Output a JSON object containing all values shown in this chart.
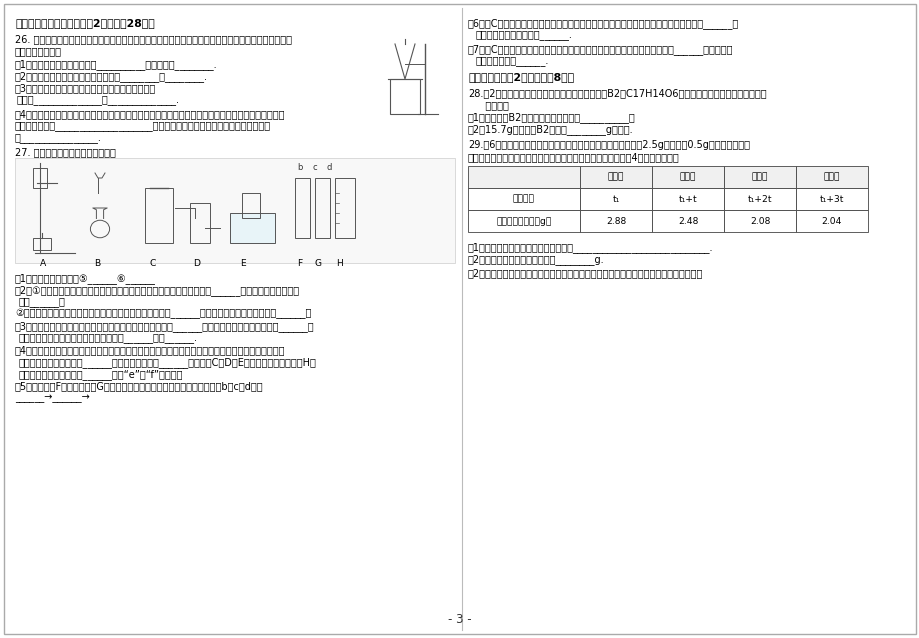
{
  "page_num": "- 3 -",
  "bg_color": "#ffffff",
  "text_color": "#000000",
  "section3_title": "三、实验与探究（本题包括2小题，共28分）",
  "q26_title": "26. 小军同学将浑浊的河水样品倒入烧杯中，先加入明矾粉末搂拌溶解，静置一会后，用右图所示的装置",
  "q26_line2": "进行过滤，请问：",
  "q26_1": "（1）图中还缺少的一种仪器是__________；其作用是________.",
  "q26_2": "（2）请指出操作错误地方（写两种）：________；________.",
  "q26_3": "（3）过滤后观察发现，滤液仍然浑浊，可能是（写两",
  "q26_3b": "种）：______________；______________.",
  "q26_4a": "（4）改进后过滤，得到了澄清透明的水，他兴奋的宣布：我终于制得了纯净水了！对此，你有没有不同",
  "q26_4b": "的看法？理由是____________________，若要制得纯净的水，还需要采取的净化方法",
  "q26_4c": "是________________.",
  "q27_title": "27. 结合下列实验装置图回答问题：",
  "q27_labels": [
    "A",
    "B",
    "C",
    "D",
    "E",
    "F",
    "G",
    "H"
  ],
  "q27_1": "（1）写出仪器的名称：⑤______⑥______",
  "q27_2a": "（2）①实验室用氯酸鿨和二氧化锤作为原料制取氧气，选择的发生装置是______；发生反应的化学方程",
  "q27_2b": "式：______；",
  "q27_2c": "②若改用高锄酸鿨制取氧气，需改进装置，在试管口塞一团______，发生反应的化学方程式为：______；",
  "q27_3": "（3）如果用过氧化氢溶液制取氧气可以选用的发生装置是：______，则发生反应的化学方程式为______；",
  "q27_3b": "为了控制反应的速率，可以将该装置中的______改为______.",
  "q27_4": "（4）二氧化碳是一种能溶于水的气体，密度比空气大，实验室中常用固体碳酸馒与液体稀盐酸反应来制",
  "q27_4b": "取二氧化碳，发生装置用______装置，收集装置用______装置（在C、D、E中选择），若使用装置H收",
  "q27_4c": "集二氧化碳，则气体应从______（填“e”或“f”）通入；",
  "q27_5": "（5）利用装置F（装满水）、G收集氧气并测量其体积，则接口的顺序为（填b、c、d）：",
  "q27_5b": "______→______→",
  "right_6": "（6）用C装置做鐵丝在氧气中燃烧的实验，应该在集气瓶里预留少量水或者细砂，目的是______，",
  "right_6b": "发生反应的化学方程式为______.",
  "right_7": "（7）用C装置做硒在氧气中燃烧的实验，应该在集気瓶里放入少量水，目的是______，发生反应",
  "right_7b": "的化学方程式为______.",
  "section4_title": "四、解答题（共2小题，满分8分）",
  "q28_title": "28.（2分）地沟油中含有一种强烈致癌物黄曲霉素B2（C17H14O6），长期食用会引起消化道癌变，",
  "q28_sub": "   请回答：",
  "q28_1": "（1）黄曲霉素B2中元素的原子个数比为__________；",
  "q28_2": "（2）15.7g黄曲霉素B2中含有________g氧元素.",
  "q29_title": "29.（6分）某同学为了测定氯酸鿨样品中氯酸鿨的质量分数，卦2.5g该样品与0.5g二氧化锤混合，",
  "q29_sub": "加热该混合物（假设杂质不参加反应），称量剩余固体质量，剔4次记录如下表：",
  "table_col0": "加热时间",
  "table_col0_2": "剩余固体的质量（g）",
  "table_h1": "第一次",
  "table_h2": "第二次",
  "table_h3": "第三次",
  "table_h4": "第四次",
  "table_r1c1": "t₁",
  "table_r1c2": "t₁+t",
  "table_r1c3": "t₁+2t",
  "table_r1c4": "t₁+3t",
  "table_r2c1": "2.88",
  "table_r2c2": "2.48",
  "table_r2c3": "2.08",
  "table_r2c4": "2.04",
  "q29_1": "（1）不再进行第五次实验记录的原因是____________________________.",
  "q29_2": "（2）完全反应后产生氧气的质量________g.",
  "q29_3": "（2）该样品中氯酸鿨的质量分数是多少？（要求：写出计算过程，结果保留一位小数。）"
}
